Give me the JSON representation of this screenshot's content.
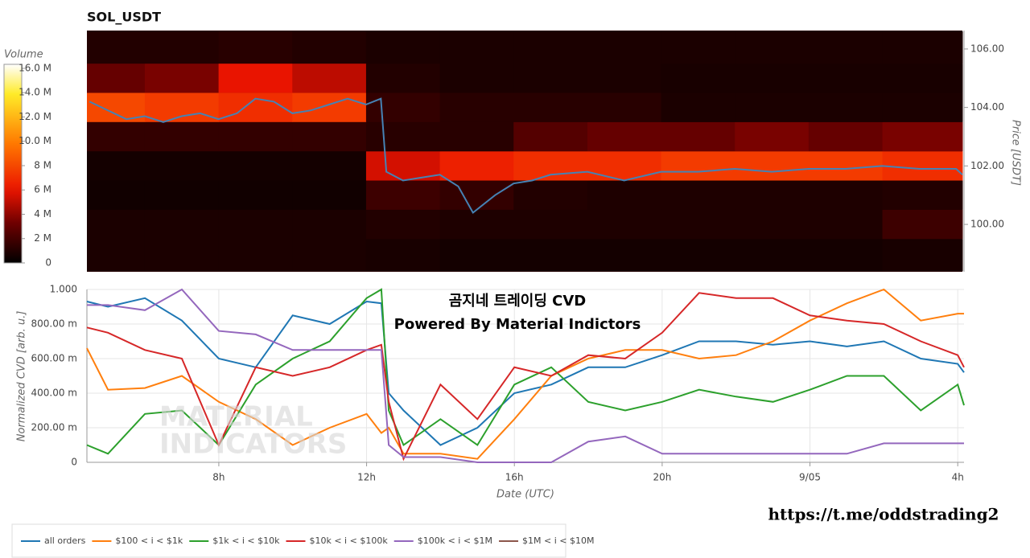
{
  "chart_data": [
    {
      "type": "heatmap",
      "title": "SOL_USDT",
      "y_label": "Price [USDT]",
      "x_bins": [
        4.43,
        6,
        8,
        10,
        12,
        14,
        16,
        18,
        20,
        22,
        24,
        26,
        28.17
      ],
      "y_bins": [
        98.4,
        99.5,
        100.5,
        101.5,
        102.5,
        103.5,
        104.5,
        105.5,
        106.6
      ],
      "values": [
        [
          0.8,
          0.8,
          0.8,
          0.8,
          0.7,
          0.6,
          0.6,
          0.6,
          0.6,
          0.6,
          0.6,
          0.7
        ],
        [
          0.8,
          0.8,
          0.8,
          0.8,
          1.0,
          0.9,
          0.9,
          0.9,
          0.9,
          0.9,
          0.9,
          1.8
        ],
        [
          0.5,
          0.5,
          0.5,
          0.5,
          1.8,
          1.5,
          1.0,
          0.9,
          0.9,
          0.9,
          0.9,
          1.0
        ],
        [
          0.6,
          0.6,
          0.6,
          0.6,
          5.5,
          6.5,
          7.0,
          7.0,
          7.5,
          7.5,
          7.5,
          7.0
        ],
        [
          1.5,
          1.5,
          1.5,
          1.5,
          1.2,
          1.2,
          2.5,
          3.0,
          3.0,
          3.5,
          3.0,
          3.5
        ],
        [
          8.0,
          7.5,
          7.0,
          7.5,
          1.5,
          1.2,
          1.2,
          1.2,
          0.8,
          0.8,
          0.8,
          0.8
        ],
        [
          3.0,
          3.5,
          6.0,
          5.0,
          1.0,
          0.8,
          0.8,
          0.8,
          0.7,
          0.7,
          0.7,
          0.7
        ],
        [
          1.0,
          1.0,
          1.2,
          1.0,
          0.8,
          0.8,
          0.8,
          0.8,
          0.8,
          0.8,
          0.8,
          0.8
        ]
      ],
      "xlim": [
        4.43,
        28.17
      ],
      "ylim": [
        98.38,
        106.63
      ],
      "yticks": [
        {
          "value": 100,
          "label": "100.00"
        },
        {
          "value": 102,
          "label": "102.00"
        },
        {
          "value": 104,
          "label": "104.00"
        },
        {
          "value": 106,
          "label": "106.00"
        }
      ],
      "colorbar": {
        "title": "Volume",
        "lim": [
          0,
          16.33
        ],
        "ticks": [
          0,
          {
            "value": 2,
            "label": "2 M"
          },
          {
            "value": 4,
            "label": "4 M"
          },
          {
            "value": 6,
            "label": "6 M"
          },
          {
            "value": 8,
            "label": "8 M"
          },
          {
            "value": 10,
            "label": "10.0 M"
          },
          {
            "value": 12,
            "label": "12.0 M"
          },
          {
            "value": 14,
            "label": "14.0 M"
          },
          {
            "value": 16,
            "label": "16.0 M"
          }
        ]
      },
      "series": [
        {
          "color": "#4682b4",
          "x": [
            4.5,
            5.0,
            5.5,
            6.0,
            6.5,
            7.0,
            7.5,
            8.0,
            8.5,
            9.0,
            9.5,
            10.0,
            10.5,
            11.0,
            11.5,
            12.0,
            12.4,
            12.55,
            13.0,
            13.5,
            14.0,
            14.5,
            14.9,
            15.5,
            16.0,
            16.5,
            17.0,
            18.0,
            19.0,
            20.0,
            21.0,
            22.0,
            23.0,
            24.0,
            25.0,
            26.0,
            27.0,
            28.0,
            28.17
          ],
          "values": [
            104.2,
            103.9,
            103.6,
            103.7,
            103.5,
            103.7,
            103.8,
            103.6,
            103.8,
            104.3,
            104.2,
            103.8,
            103.9,
            104.1,
            104.3,
            104.1,
            104.3,
            101.8,
            101.5,
            101.6,
            101.7,
            101.3,
            100.4,
            101.0,
            101.4,
            101.5,
            101.7,
            101.8,
            101.5,
            101.8,
            101.8,
            101.9,
            101.8,
            101.9,
            101.9,
            102.0,
            101.9,
            101.9,
            101.7
          ]
        }
      ]
    },
    {
      "type": "line",
      "y_label": "Normalized CVD [arb. u.]",
      "x_label": "Date (UTC)",
      "annotations": [
        "곰지네 트레이딩 CVD",
        "Powered By Material Indictors"
      ],
      "watermark": [
        "MATERIAL",
        "INDICATORS"
      ],
      "xlim": [
        4.43,
        28.17
      ],
      "xticks": [
        {
          "value": 8,
          "label": "8h"
        },
        {
          "value": 12,
          "label": "12h"
        },
        {
          "value": 16,
          "label": "16h"
        },
        {
          "value": 20,
          "label": "20h"
        },
        {
          "value": 24,
          "label": "9/05"
        },
        {
          "value": 28,
          "label": "4h"
        }
      ],
      "ylim": [
        0,
        1
      ],
      "yticks": [
        0,
        {
          "value": 0.2,
          "label": "200.00 m"
        },
        {
          "value": 0.4,
          "label": "400.00 m"
        },
        {
          "value": 0.6,
          "label": "600.00 m"
        },
        {
          "value": 0.8,
          "label": "800.00 m"
        },
        {
          "value": 1,
          "label": "1.000"
        }
      ],
      "grid": true,
      "legend": "bottom",
      "x": [
        4.43,
        5,
        6,
        7,
        8,
        9,
        10,
        11,
        12,
        12.4,
        12.6,
        13,
        14,
        15,
        16,
        17,
        18,
        19,
        20,
        21,
        22,
        23,
        24,
        25,
        26,
        27,
        28,
        28.17
      ],
      "series": [
        {
          "name": "all orders",
          "color": "#1f77b4",
          "values": [
            0.93,
            0.9,
            0.95,
            0.82,
            0.6,
            0.55,
            0.85,
            0.8,
            0.93,
            0.92,
            0.4,
            0.3,
            0.1,
            0.2,
            0.4,
            0.45,
            0.55,
            0.55,
            0.62,
            0.7,
            0.7,
            0.68,
            0.7,
            0.67,
            0.7,
            0.6,
            0.57,
            0.52
          ]
        },
        {
          "name": "$100 < i < $1k",
          "color": "#ff7f0e",
          "values": [
            0.66,
            0.42,
            0.43,
            0.5,
            0.35,
            0.25,
            0.1,
            0.2,
            0.28,
            0.17,
            0.2,
            0.05,
            0.05,
            0.02,
            0.25,
            0.5,
            0.6,
            0.65,
            0.65,
            0.6,
            0.62,
            0.7,
            0.82,
            0.92,
            1.0,
            0.82,
            0.86,
            0.86
          ]
        },
        {
          "name": "$1k < i < $10k",
          "color": "#2ca02c",
          "values": [
            0.1,
            0.05,
            0.28,
            0.3,
            0.1,
            0.45,
            0.6,
            0.7,
            0.95,
            1.0,
            0.3,
            0.1,
            0.25,
            0.1,
            0.45,
            0.55,
            0.35,
            0.3,
            0.35,
            0.42,
            0.38,
            0.35,
            0.42,
            0.5,
            0.5,
            0.3,
            0.45,
            0.33
          ]
        },
        {
          "name": "$10k < i < $100k",
          "color": "#d62728",
          "values": [
            0.78,
            0.75,
            0.65,
            0.6,
            0.1,
            0.55,
            0.5,
            0.55,
            0.65,
            0.68,
            0.35,
            0.02,
            0.45,
            0.25,
            0.55,
            0.5,
            0.62,
            0.6,
            0.75,
            0.98,
            0.95,
            0.95,
            0.85,
            0.82,
            0.8,
            0.7,
            0.62,
            0.55
          ]
        },
        {
          "name": "$100k < i < $1M",
          "color": "#9467bd",
          "values": [
            0.91,
            0.91,
            0.88,
            1.0,
            0.76,
            0.74,
            0.65,
            0.65,
            0.65,
            0.65,
            0.1,
            0.03,
            0.03,
            0.0,
            0.0,
            0.0,
            0.12,
            0.15,
            0.05,
            0.05,
            0.05,
            0.05,
            0.05,
            0.05,
            0.11,
            0.11,
            0.11,
            0.11
          ]
        },
        {
          "name": "$1M < i < $10M",
          "color": "#8c564b",
          "values": [
            null,
            null,
            null,
            null,
            null,
            null,
            null,
            null,
            null,
            null,
            null,
            null,
            null,
            null,
            null,
            null,
            null,
            null,
            null,
            null,
            null,
            null,
            null,
            null,
            null,
            null,
            null,
            null
          ]
        }
      ]
    }
  ],
  "footer": {
    "link": "https://t.me/oddstrading2"
  }
}
